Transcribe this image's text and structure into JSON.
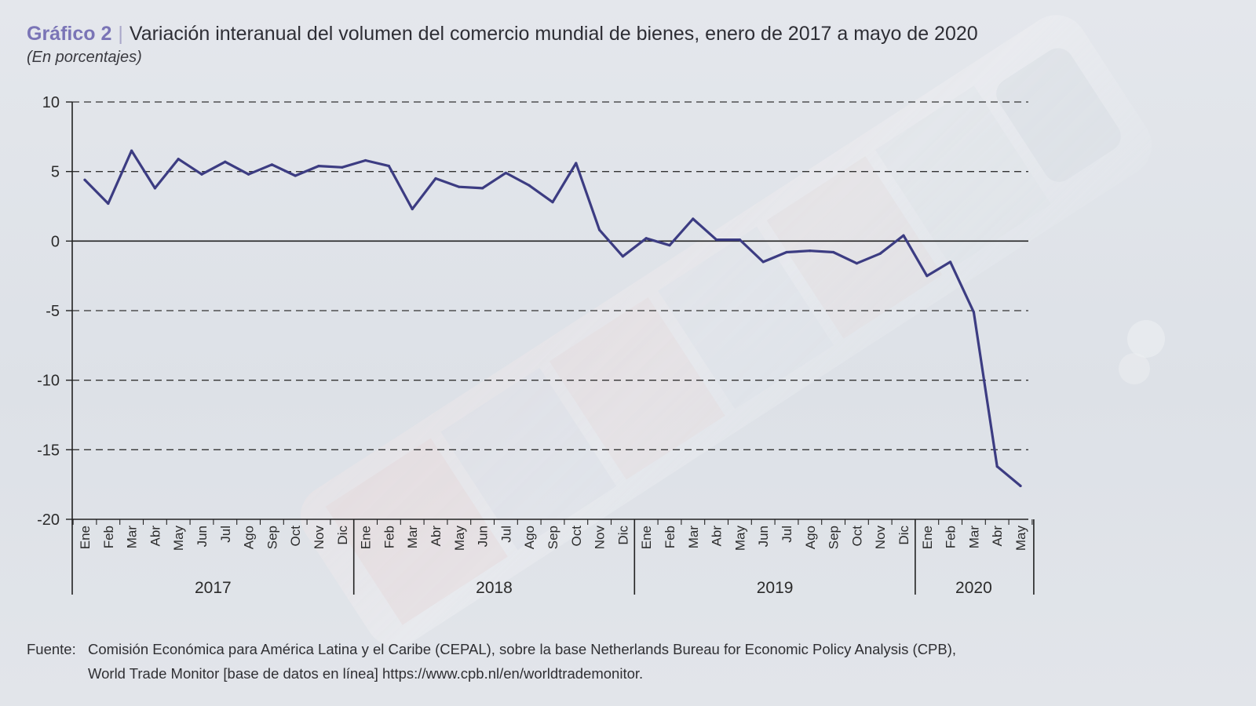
{
  "header": {
    "figure_label": "Gráfico 2",
    "separator": "|",
    "title": "Variación interanual del volumen del comercio mundial de bienes, enero de 2017 a mayo de 2020",
    "subtitle": "(En porcentajes)"
  },
  "source": {
    "label": "Fuente:",
    "line1": "Comisión Económica para América Latina y el Caribe (CEPAL), sobre la base Netherlands Bureau for Economic Policy Analysis (CPB),",
    "line2": "World Trade Monitor [base de datos en línea] https://www.cpb.nl/en/worldtrademonitor."
  },
  "colors": {
    "series_line": "#3c3c82",
    "grid_dash": "#333333",
    "axis": "#222222",
    "figure_label": "#7a74b6"
  },
  "chart_data": {
    "type": "line",
    "ylim": [
      -20,
      10
    ],
    "yticks": [
      10,
      5,
      0,
      -5,
      -10,
      -15,
      -20
    ],
    "grid": "dashed horizontal",
    "legend": "none",
    "categories": [
      "Ene",
      "Feb",
      "Mar",
      "Abr",
      "May",
      "Jun",
      "Jul",
      "Ago",
      "Sep",
      "Oct",
      "Nov",
      "Dic",
      "Ene",
      "Feb",
      "Mar",
      "Abr",
      "May",
      "Jun",
      "Jul",
      "Ago",
      "Sep",
      "Oct",
      "Nov",
      "Dic",
      "Ene",
      "Feb",
      "Mar",
      "Abr",
      "May",
      "Jun",
      "Jul",
      "Ago",
      "Sep",
      "Oct",
      "Nov",
      "Dic",
      "Ene",
      "Feb",
      "Mar",
      "Abr",
      "May"
    ],
    "year_groups": [
      {
        "label": "2017",
        "count": 12
      },
      {
        "label": "2018",
        "count": 12
      },
      {
        "label": "2019",
        "count": 12
      },
      {
        "label": "2020",
        "count": 5
      }
    ],
    "series": [
      {
        "values": [
          4.4,
          2.7,
          6.5,
          3.8,
          5.9,
          4.8,
          5.7,
          4.8,
          5.5,
          4.7,
          5.4,
          5.3,
          5.8,
          5.4,
          2.3,
          4.5,
          3.9,
          3.8,
          4.9,
          4.0,
          2.8,
          5.6,
          0.8,
          -1.1,
          0.2,
          -0.3,
          1.6,
          0.1,
          0.1,
          -1.5,
          -0.8,
          -0.7,
          -0.8,
          -1.6,
          -0.9,
          0.4,
          -2.5,
          -1.5,
          -5.1,
          -16.2,
          -17.6
        ]
      }
    ]
  }
}
